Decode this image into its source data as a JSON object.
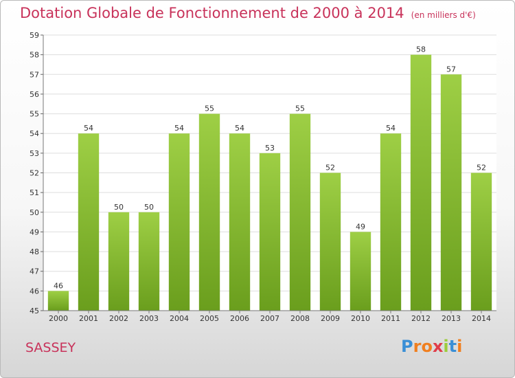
{
  "title": "Dotation Globale de Fonctionnement de 2000 à 2014",
  "subtitle": "(en milliers d'€)",
  "place": "SASSEY",
  "logo": {
    "letters": [
      "P",
      "r",
      "o",
      "x",
      "i",
      "t",
      "i"
    ],
    "colors": [
      "#3a8fd6",
      "#f07f1f",
      "#f07f1f",
      "#e03c4a",
      "#9ccc3c",
      "#3a8fd6",
      "#f07f1f"
    ]
  },
  "colors": {
    "bar_top": "#9ecf45",
    "bar_bottom": "#6a9e1d",
    "title": "#c8325a",
    "grid": "#dddddd"
  },
  "chart_data": {
    "type": "bar",
    "title": "Dotation Globale de Fonctionnement de 2000 à 2014",
    "subtitle": "(en milliers d'€)",
    "xlabel": "",
    "ylabel": "",
    "categories": [
      "2000",
      "2001",
      "2002",
      "2003",
      "2004",
      "2005",
      "2006",
      "2007",
      "2008",
      "2009",
      "2010",
      "2011",
      "2012",
      "2013",
      "2014"
    ],
    "values": [
      46,
      54,
      50,
      50,
      54,
      55,
      54,
      53,
      55,
      52,
      49,
      54,
      58,
      57,
      52
    ],
    "yticks": [
      45,
      46,
      47,
      48,
      49,
      50,
      51,
      52,
      53,
      54,
      55,
      56,
      57,
      58,
      59
    ],
    "ylim": [
      45,
      59
    ],
    "grid": true,
    "data_labels": true
  }
}
